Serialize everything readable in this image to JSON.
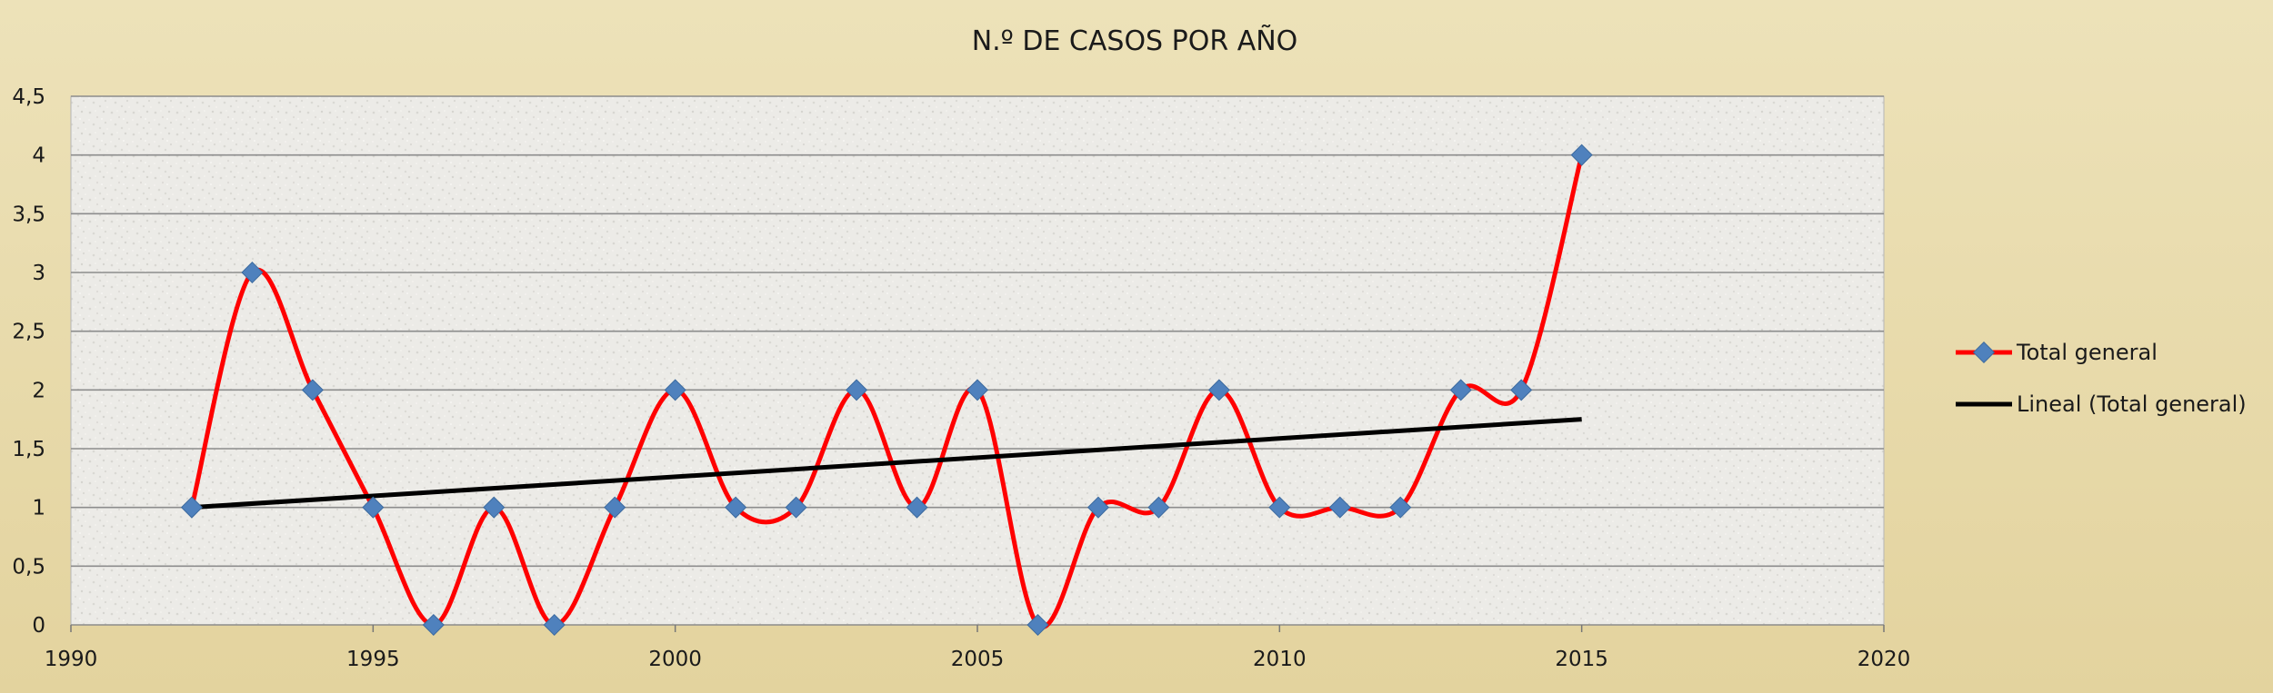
{
  "chart_data": {
    "type": "scatter",
    "title": "N.º DE CASOS POR AÑO",
    "xlabel": "",
    "ylabel": "",
    "xlim": [
      1990,
      2020
    ],
    "ylim": [
      0,
      4.5
    ],
    "x_ticks": [
      "1990",
      "1995",
      "2000",
      "2005",
      "2010",
      "2015",
      "2020"
    ],
    "y_ticks": [
      "0",
      "0,5",
      "1",
      "1,5",
      "2",
      "2,5",
      "3",
      "3,5",
      "4",
      "4,5"
    ],
    "grid": true,
    "legend_position": "right",
    "series": [
      {
        "name": "Total general",
        "style": "smooth-line-with-diamond-markers",
        "color": "#ff0000",
        "marker_color": "#4f81bd",
        "x": [
          1992,
          1993,
          1994,
          1995,
          1996,
          1997,
          1998,
          1999,
          2000,
          2001,
          2002,
          2003,
          2004,
          2005,
          2006,
          2007,
          2008,
          2009,
          2010,
          2011,
          2012,
          2013,
          2014,
          2015
        ],
        "y": [
          1,
          3,
          2,
          1,
          0,
          1,
          0,
          1,
          2,
          1,
          1,
          2,
          1,
          2,
          0,
          1,
          1,
          2,
          1,
          1,
          1,
          2,
          2,
          4
        ]
      },
      {
        "name": "Lineal (Total general)",
        "style": "linear-trendline",
        "color": "#000000",
        "x": [
          1992,
          2015
        ],
        "y": [
          1.0,
          1.75
        ]
      }
    ]
  }
}
